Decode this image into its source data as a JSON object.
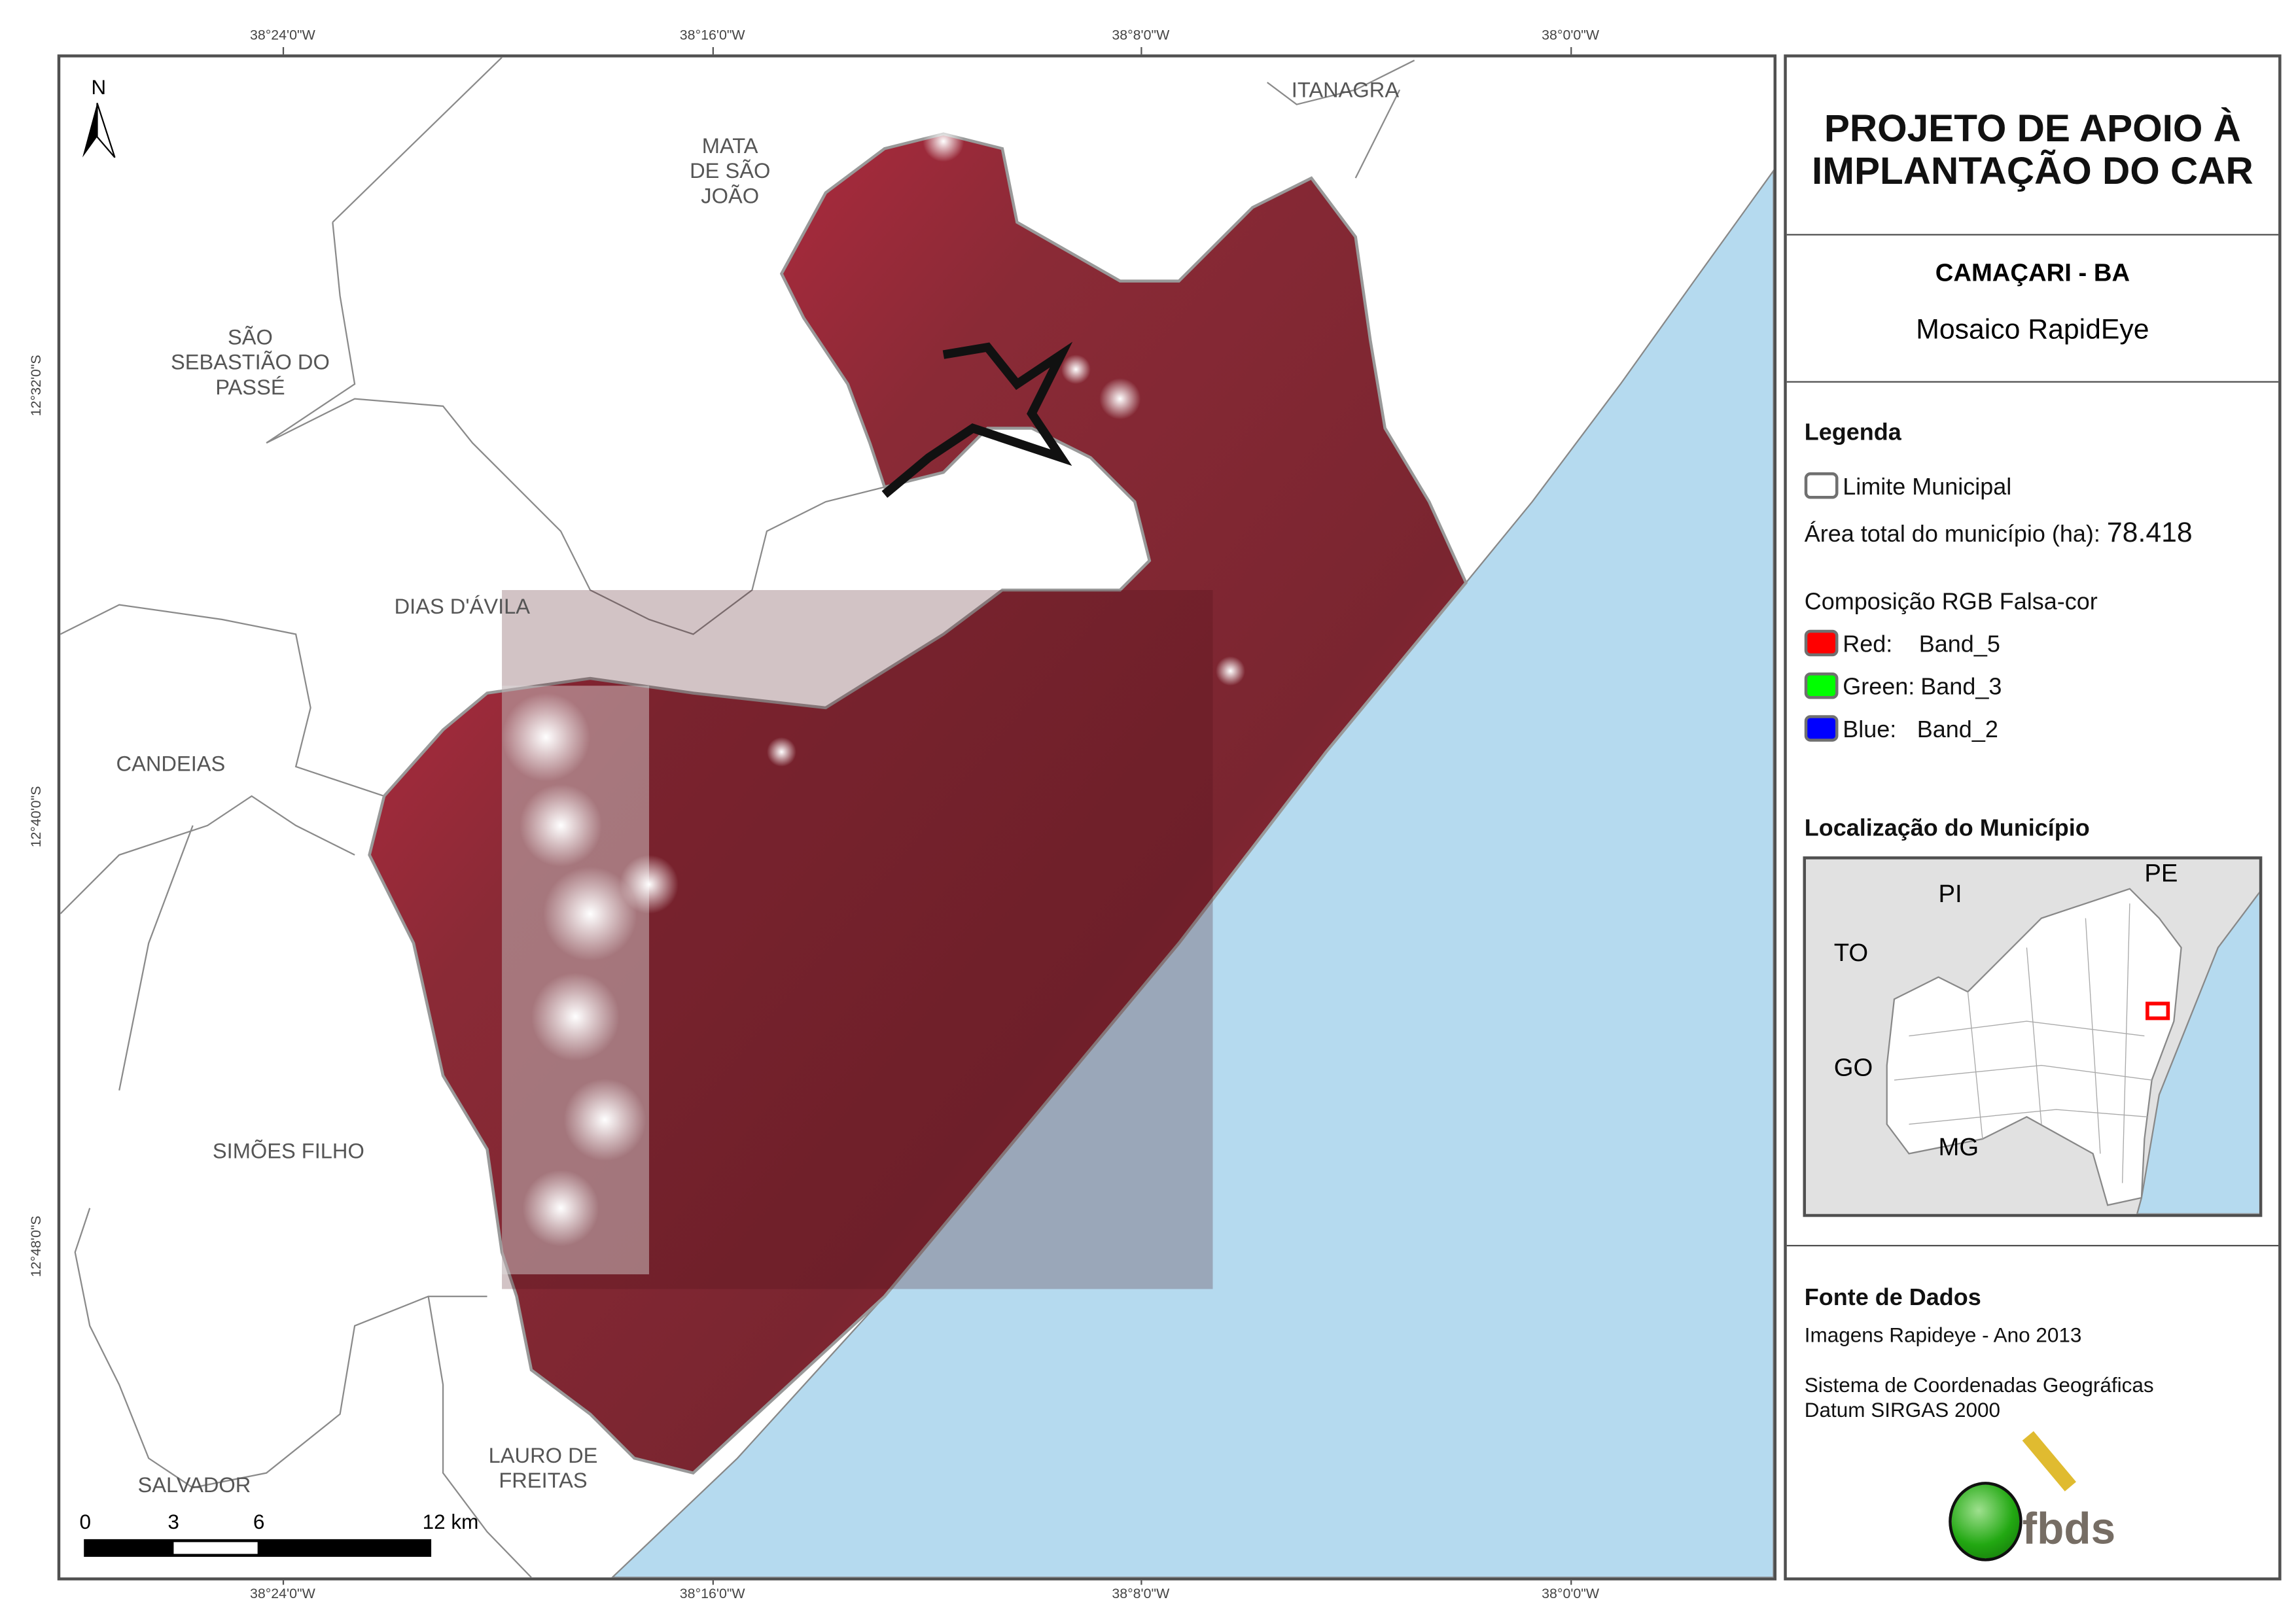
{
  "map": {
    "north_label": "N",
    "top_coords": [
      "38°24'0\"W",
      "38°16'0\"W",
      "38°8'0\"W",
      "38°0'0\"W"
    ],
    "bottom_coords": [
      "38°24'0\"W",
      "38°16'0\"W",
      "38°8'0\"W",
      "38°0'0\"W"
    ],
    "left_coords": [
      "12°32'0\"S",
      "12°40'0\"S",
      "12°48'0\"S"
    ],
    "labels": {
      "itanagra": "ITANAGRA",
      "mata1": "MATA",
      "mata2": "DE SÃO",
      "mata3": "JOÃO",
      "sao1": "SÃO",
      "sao2": "SEBASTIÃO DO",
      "sao3": "PASSÉ",
      "dias": "DIAS D'ÁVILA",
      "candeias": "CANDEIAS",
      "simoes": "SIMÕES FILHO",
      "salvador": "SALVADOR",
      "lauro1": "LAURO DE",
      "lauro2": "FREITAS"
    },
    "scale_bar": {
      "ticks": [
        "0",
        "3",
        "6",
        "12 km"
      ]
    },
    "colors": {
      "ocean": "#b5daef",
      "boundary": "#888888",
      "vegetation": "#c4263c"
    }
  },
  "panel": {
    "title_line1": "PROJETO DE APOIO À",
    "title_line2": "IMPLANTAÇÃO DO CAR",
    "municipality": "CAMAÇARI - BA",
    "subtitle": "Mosaico RapidEye",
    "legend": {
      "heading": "Legenda",
      "boundary_label": "Limite Municipal",
      "area_label": "Área total do município (ha):",
      "area_value": "78.418",
      "composition_label": "Composição RGB Falsa-cor",
      "bands": [
        {
          "channel": "Red:",
          "band": "Band_5",
          "color": "#ff0000"
        },
        {
          "channel": "Green:",
          "band": "Band_3",
          "color": "#00ff00"
        },
        {
          "channel": "Blue:",
          "band": "Band_2",
          "color": "#0000ff"
        }
      ]
    },
    "location": {
      "heading": "Localização do Município",
      "states": [
        "PI",
        "PE",
        "TO",
        "GO",
        "MG"
      ]
    },
    "sources": {
      "heading": "Fonte de Dados",
      "line1": "Imagens Rapideye - Ano 2013",
      "line2": "Sistema de Coordenadas Geográficas",
      "line3": "Datum SIRGAS 2000"
    },
    "logo_text": "fbds"
  }
}
